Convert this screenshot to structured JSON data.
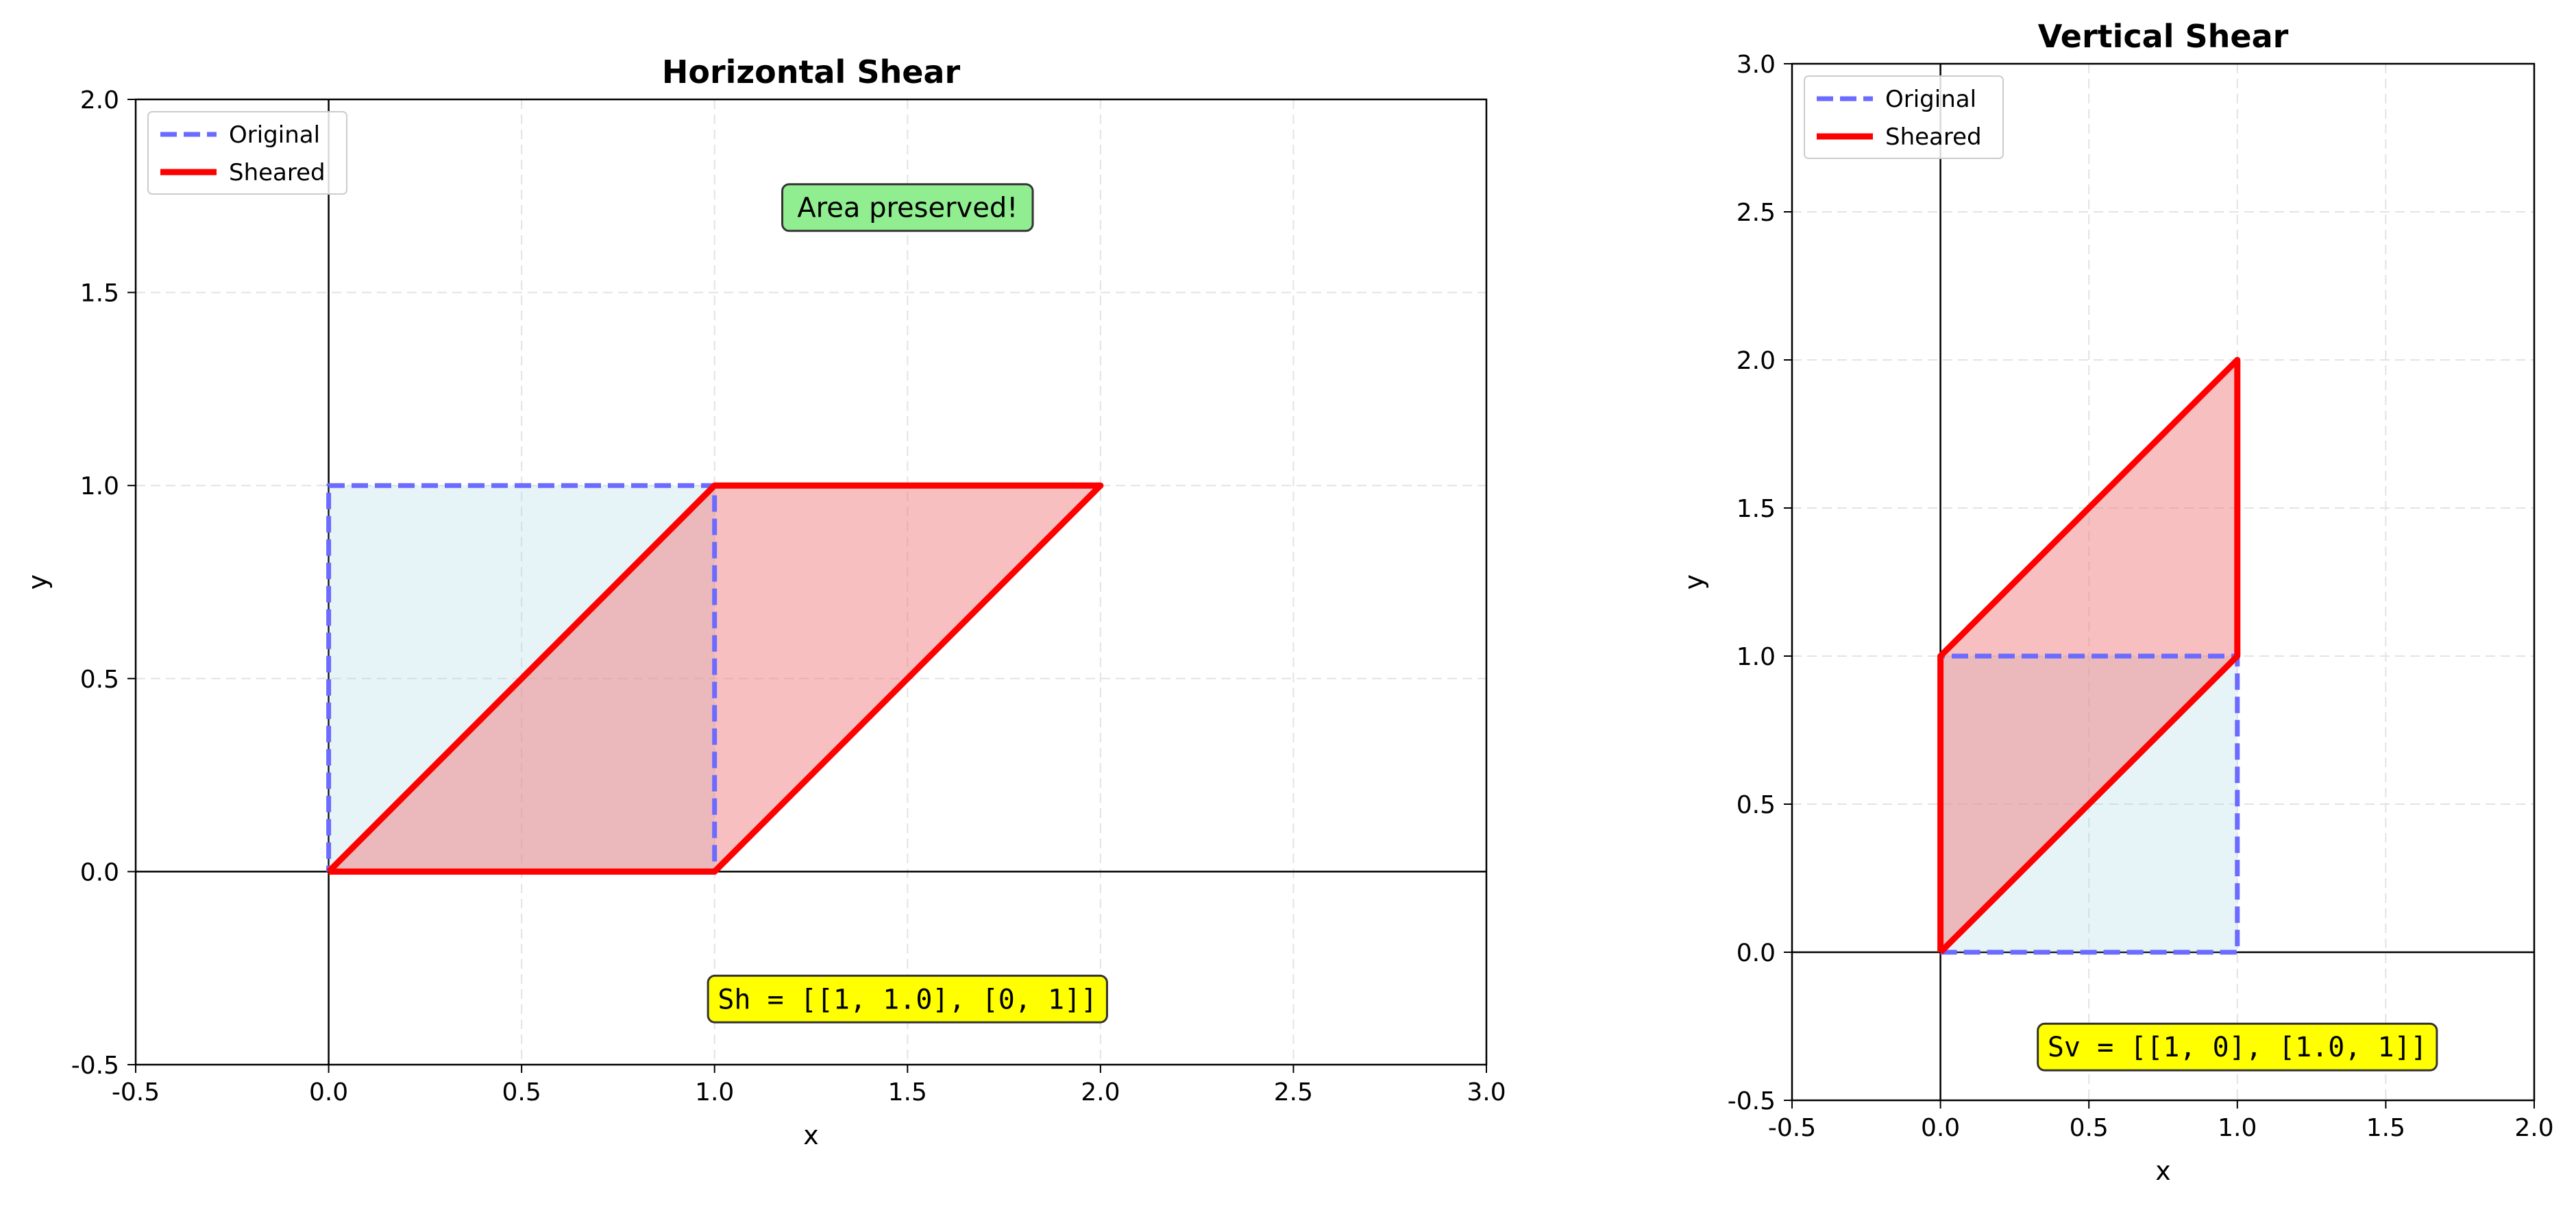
{
  "chart_data": [
    {
      "type": "line",
      "title": "Horizontal Shear",
      "xlabel": "x",
      "ylabel": "y",
      "xlim": [
        -0.5,
        3.0
      ],
      "ylim": [
        -0.5,
        2.0
      ],
      "xticks": [
        -0.5,
        0.0,
        0.5,
        1.0,
        1.5,
        2.0,
        2.5,
        3.0
      ],
      "yticks": [
        -0.5,
        0.0,
        0.5,
        1.0,
        1.5,
        2.0
      ],
      "xtick_labels": [
        "-0.5",
        "0.0",
        "0.5",
        "1.0",
        "1.5",
        "2.0",
        "2.5",
        "3.0"
      ],
      "ytick_labels": [
        "-0.5",
        "0.0",
        "0.5",
        "1.0",
        "1.5",
        "2.0"
      ],
      "grid": true,
      "legend_position": "top-left",
      "series": [
        {
          "name": "Original",
          "style": "dashed",
          "color": "#6b6bff",
          "fill": "#add8e6",
          "x": [
            0,
            1,
            1,
            0,
            0
          ],
          "y": [
            0,
            0,
            1,
            1,
            0
          ]
        },
        {
          "name": "Sheared",
          "style": "solid",
          "color": "#ff0000",
          "fill": "#f08080",
          "x": [
            0,
            1,
            2,
            1,
            0
          ],
          "y": [
            0,
            0,
            1,
            1,
            0
          ]
        }
      ],
      "annotations": [
        {
          "text": "Area preserved!",
          "x": 1.5,
          "y": 1.72,
          "bg": "#90ee90",
          "mono": false
        },
        {
          "text": "Sh = [[1, 1.0], [0, 1]]",
          "x": 1.5,
          "y": -0.33,
          "bg": "#ffff00",
          "mono": true
        }
      ]
    },
    {
      "type": "line",
      "title": "Vertical Shear",
      "xlabel": "x",
      "ylabel": "y",
      "xlim": [
        -0.5,
        2.0
      ],
      "ylim": [
        -0.5,
        3.0
      ],
      "xticks": [
        -0.5,
        0.0,
        0.5,
        1.0,
        1.5,
        2.0
      ],
      "yticks": [
        -0.5,
        0.0,
        0.5,
        1.0,
        1.5,
        2.0,
        2.5,
        3.0
      ],
      "xtick_labels": [
        "-0.5",
        "0.0",
        "0.5",
        "1.0",
        "1.5",
        "2.0"
      ],
      "ytick_labels": [
        "-0.5",
        "0.0",
        "0.5",
        "1.0",
        "1.5",
        "2.0",
        "2.5",
        "3.0"
      ],
      "grid": true,
      "legend_position": "top-left",
      "series": [
        {
          "name": "Original",
          "style": "dashed",
          "color": "#6b6bff",
          "fill": "#add8e6",
          "x": [
            0,
            1,
            1,
            0,
            0
          ],
          "y": [
            0,
            0,
            1,
            1,
            0
          ]
        },
        {
          "name": "Sheared",
          "style": "solid",
          "color": "#ff0000",
          "fill": "#f08080",
          "x": [
            0,
            1,
            1,
            0,
            0
          ],
          "y": [
            0,
            1,
            2,
            1,
            0
          ]
        }
      ],
      "annotations": [
        {
          "text": "Sv = [[1, 0], [1.0, 1]]",
          "x": 1.0,
          "y": -0.32,
          "bg": "#ffff00",
          "mono": true
        }
      ]
    }
  ]
}
